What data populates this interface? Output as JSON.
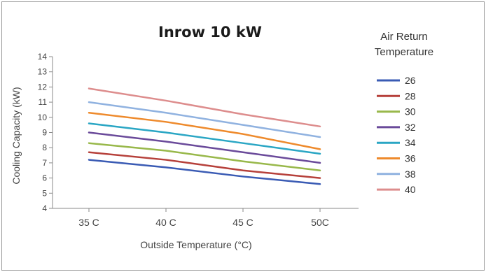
{
  "chart_data": {
    "type": "line",
    "title": "Inrow 10 kW",
    "xlabel": "Outside Temperature (°C)",
    "ylabel": "Cooling Capacity (kW)",
    "categories": [
      "35 C",
      "40 C",
      "45 C",
      "50C"
    ],
    "ylim": [
      4,
      14
    ],
    "yticks": [
      4,
      5,
      6,
      7,
      8,
      9,
      10,
      11,
      12,
      13,
      14
    ],
    "grid": false,
    "legend_title": "Air Return Temperature",
    "legend_position": "right",
    "series": [
      {
        "name": "26",
        "color": "#3a5bb4",
        "values": [
          7.2,
          6.7,
          6.1,
          5.6
        ]
      },
      {
        "name": "28",
        "color": "#b6403a",
        "values": [
          7.7,
          7.2,
          6.5,
          6.0
        ]
      },
      {
        "name": "30",
        "color": "#98b84a",
        "values": [
          8.3,
          7.8,
          7.1,
          6.5
        ]
      },
      {
        "name": "32",
        "color": "#6a4a9a",
        "values": [
          9.0,
          8.4,
          7.7,
          7.0
        ]
      },
      {
        "name": "34",
        "color": "#2aa6c4",
        "values": [
          9.6,
          9.0,
          8.3,
          7.6
        ]
      },
      {
        "name": "36",
        "color": "#ee8a2c",
        "values": [
          10.3,
          9.7,
          8.9,
          7.9
        ]
      },
      {
        "name": "38",
        "color": "#90b2e0",
        "values": [
          11.0,
          10.3,
          9.5,
          8.7
        ]
      },
      {
        "name": "40",
        "color": "#dd8d8d",
        "values": [
          11.9,
          11.1,
          10.2,
          9.4
        ]
      }
    ]
  }
}
